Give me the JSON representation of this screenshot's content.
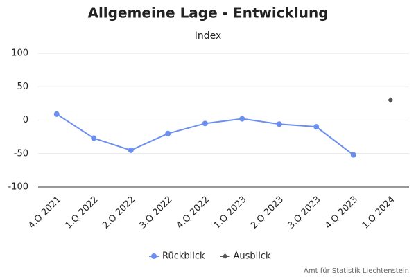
{
  "chart_data": {
    "type": "line",
    "title": "Allgemeine Lage - Entwicklung",
    "subtitle": "Index",
    "categories": [
      "4.Q 2021",
      "1.Q 2022",
      "2.Q 2022",
      "3.Q 2022",
      "4.Q 2022",
      "1.Q 2023",
      "2.Q 2023",
      "3.Q 2023",
      "4.Q 2023",
      "1.Q 2024"
    ],
    "series": [
      {
        "name": "Rückblick",
        "color": "#6b8ff0",
        "marker": "circle",
        "values": [
          9,
          -27,
          -45,
          -20,
          -5,
          2,
          -6,
          -10,
          -52,
          null
        ]
      },
      {
        "name": "Ausblick",
        "color": "#555555",
        "marker": "diamond",
        "values": [
          null,
          null,
          null,
          null,
          null,
          null,
          null,
          null,
          null,
          30
        ]
      }
    ],
    "ylim": [
      -100,
      100
    ],
    "yticks": [
      -100,
      -50,
      0,
      50,
      100
    ],
    "grid": true,
    "legend": "bottom",
    "credit": "Amt für Statistik Liechtenstein"
  }
}
